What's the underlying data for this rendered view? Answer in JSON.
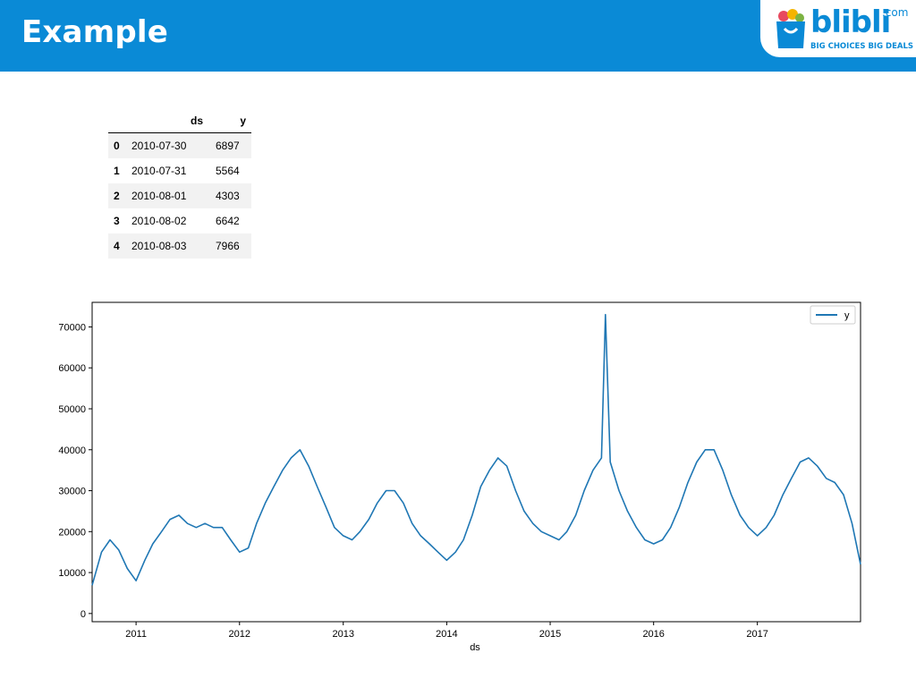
{
  "slide": {
    "title": "Example"
  },
  "logo": {
    "name": "blibli",
    "suffix": ".com",
    "tagline": "BIG CHOICES  BIG DEALS"
  },
  "table": {
    "columns": [
      "ds",
      "y"
    ],
    "rows": [
      {
        "index": "0",
        "ds": "2010-07-30",
        "y": "6897"
      },
      {
        "index": "1",
        "ds": "2010-07-31",
        "y": "5564"
      },
      {
        "index": "2",
        "ds": "2010-08-01",
        "y": "4303"
      },
      {
        "index": "3",
        "ds": "2010-08-02",
        "y": "6642"
      },
      {
        "index": "4",
        "ds": "2010-08-03",
        "y": "7966"
      }
    ]
  },
  "chart_data": {
    "type": "line",
    "xlabel": "ds",
    "ylabel": "",
    "x_ticks": [
      "2011",
      "2012",
      "2013",
      "2014",
      "2015",
      "2016",
      "2017"
    ],
    "y_ticks": [
      "0",
      "10000",
      "20000",
      "30000",
      "40000",
      "50000",
      "60000",
      "70000"
    ],
    "xlim": [
      "2010-07-30",
      "2017-12-31"
    ],
    "ylim": [
      -2000,
      76000
    ],
    "grid": false,
    "legend": "top-right",
    "series": [
      {
        "name": "y",
        "color": "#1f77b4",
        "x": [
          "2010-07-30",
          "2010-09-01",
          "2010-10-01",
          "2010-11-01",
          "2010-12-01",
          "2011-01-01",
          "2011-02-01",
          "2011-03-01",
          "2011-04-01",
          "2011-05-01",
          "2011-06-01",
          "2011-07-01",
          "2011-08-01",
          "2011-09-01",
          "2011-10-01",
          "2011-11-01",
          "2011-12-01",
          "2012-01-01",
          "2012-02-01",
          "2012-03-01",
          "2012-04-01",
          "2012-05-01",
          "2012-06-01",
          "2012-07-01",
          "2012-08-01",
          "2012-09-01",
          "2012-10-01",
          "2012-11-01",
          "2012-12-01",
          "2013-01-01",
          "2013-02-01",
          "2013-03-01",
          "2013-04-01",
          "2013-05-01",
          "2013-06-01",
          "2013-07-01",
          "2013-08-01",
          "2013-09-01",
          "2013-10-01",
          "2013-11-01",
          "2013-12-01",
          "2014-01-01",
          "2014-02-01",
          "2014-03-01",
          "2014-04-01",
          "2014-05-01",
          "2014-06-01",
          "2014-07-01",
          "2014-08-01",
          "2014-09-01",
          "2014-10-01",
          "2014-11-01",
          "2014-12-01",
          "2015-01-01",
          "2015-02-01",
          "2015-03-01",
          "2015-04-01",
          "2015-05-01",
          "2015-06-01",
          "2015-07-01",
          "2015-07-15",
          "2015-08-01",
          "2015-09-01",
          "2015-10-01",
          "2015-11-01",
          "2015-12-01",
          "2016-01-01",
          "2016-02-01",
          "2016-03-01",
          "2016-04-01",
          "2016-05-01",
          "2016-06-01",
          "2016-07-01",
          "2016-08-01",
          "2016-09-01",
          "2016-10-01",
          "2016-11-01",
          "2016-12-01",
          "2017-01-01",
          "2017-02-01",
          "2017-03-01",
          "2017-04-01",
          "2017-05-01",
          "2017-06-01",
          "2017-07-01",
          "2017-08-01",
          "2017-09-01",
          "2017-10-01",
          "2017-11-01",
          "2017-12-01",
          "2017-12-31"
        ],
        "y": [
          6900,
          15000,
          18000,
          15500,
          11000,
          8000,
          13000,
          17000,
          20000,
          23000,
          24000,
          22000,
          21000,
          22000,
          21000,
          21000,
          18000,
          15000,
          16000,
          22000,
          27000,
          31000,
          35000,
          38000,
          40000,
          36000,
          31000,
          26000,
          21000,
          19000,
          18000,
          20000,
          23000,
          27000,
          30000,
          30000,
          27000,
          22000,
          19000,
          17000,
          15000,
          13000,
          15000,
          18000,
          24000,
          31000,
          35000,
          38000,
          36000,
          30000,
          25000,
          22000,
          20000,
          19000,
          18000,
          20000,
          24000,
          30000,
          35000,
          38000,
          73000,
          37000,
          30000,
          25000,
          21000,
          18000,
          17000,
          18000,
          21000,
          26000,
          32000,
          37000,
          40000,
          40000,
          35000,
          29000,
          24000,
          21000,
          19000,
          21000,
          24000,
          29000,
          33000,
          37000,
          38000,
          36000,
          33000,
          32000,
          29000,
          22000,
          12000
        ]
      }
    ]
  }
}
